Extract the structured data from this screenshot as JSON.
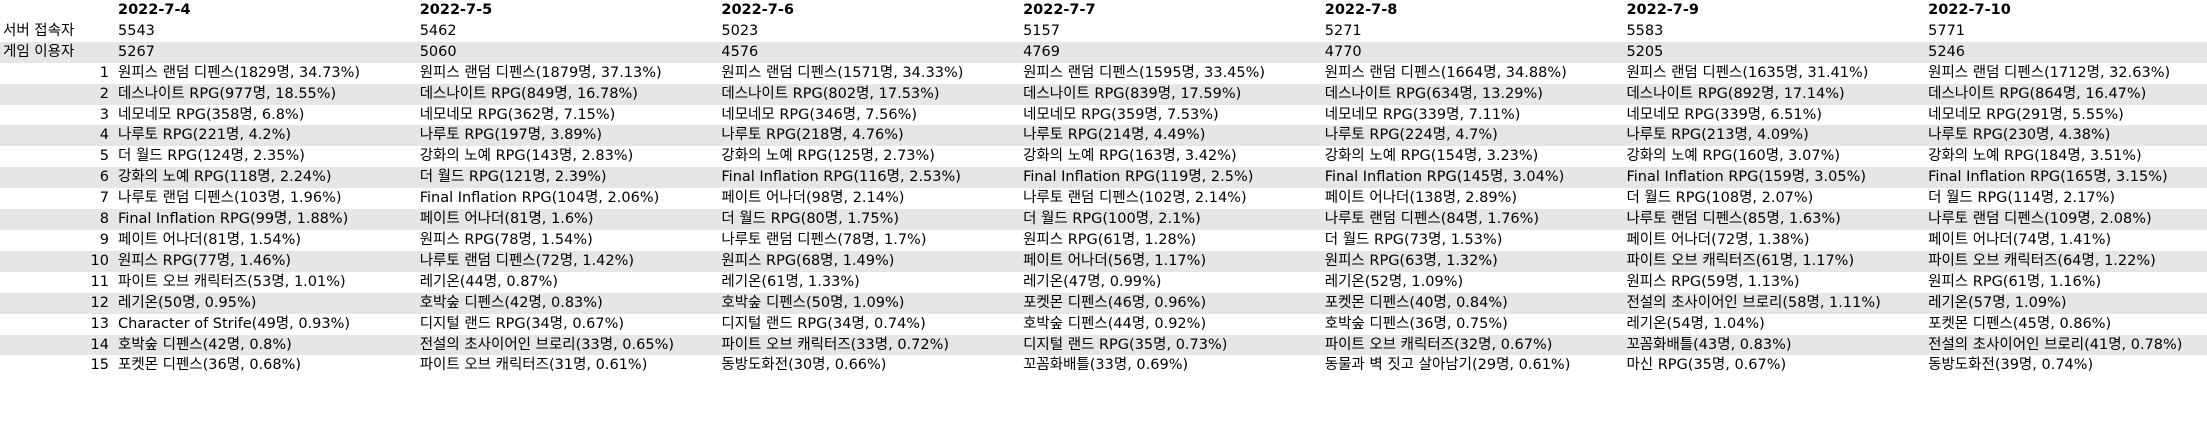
{
  "table": {
    "dates": [
      "2022-7-4",
      "2022-7-5",
      "2022-7-6",
      "2022-7-7",
      "2022-7-8",
      "2022-7-9",
      "2022-7-10"
    ],
    "server_label": "서버 접속자",
    "server_counts": [
      "5543",
      "5462",
      "5023",
      "5157",
      "5271",
      "5583",
      "5771"
    ],
    "player_label": "게임 이용자",
    "player_counts": [
      "5267",
      "5060",
      "4576",
      "4769",
      "4770",
      "5205",
      "5246"
    ],
    "ranks": [
      {
        "rank": "1",
        "cells": [
          "원피스 랜덤 디펜스(1829명, 34.73%)",
          "원피스 랜덤 디펜스(1879명, 37.13%)",
          "원피스 랜덤 디펜스(1571명, 34.33%)",
          "원피스 랜덤 디펜스(1595명, 33.45%)",
          "원피스 랜덤 디펜스(1664명, 34.88%)",
          "원피스 랜덤 디펜스(1635명, 31.41%)",
          "원피스 랜덤 디펜스(1712명, 32.63%)"
        ]
      },
      {
        "rank": "2",
        "cells": [
          "데스나이트 RPG(977명, 18.55%)",
          "데스나이트 RPG(849명, 16.78%)",
          "데스나이트 RPG(802명, 17.53%)",
          "데스나이트 RPG(839명, 17.59%)",
          "데스나이트 RPG(634명, 13.29%)",
          "데스나이트 RPG(892명, 17.14%)",
          "데스나이트 RPG(864명, 16.47%)"
        ]
      },
      {
        "rank": "3",
        "cells": [
          "네모네모 RPG(358명, 6.8%)",
          "네모네모 RPG(362명, 7.15%)",
          "네모네모 RPG(346명, 7.56%)",
          "네모네모 RPG(359명, 7.53%)",
          "네모네모 RPG(339명, 7.11%)",
          "네모네모 RPG(339명, 6.51%)",
          "네모네모 RPG(291명, 5.55%)"
        ]
      },
      {
        "rank": "4",
        "cells": [
          "나루토 RPG(221명, 4.2%)",
          "나루토 RPG(197명, 3.89%)",
          "나루토 RPG(218명, 4.76%)",
          "나루토 RPG(214명, 4.49%)",
          "나루토 RPG(224명, 4.7%)",
          "나루토 RPG(213명, 4.09%)",
          "나루토 RPG(230명, 4.38%)"
        ]
      },
      {
        "rank": "5",
        "cells": [
          "더 월드 RPG(124명, 2.35%)",
          "강화의 노예 RPG(143명, 2.83%)",
          "강화의 노예 RPG(125명, 2.73%)",
          "강화의 노예 RPG(163명, 3.42%)",
          "강화의 노예 RPG(154명, 3.23%)",
          "강화의 노예 RPG(160명, 3.07%)",
          "강화의 노예 RPG(184명, 3.51%)"
        ]
      },
      {
        "rank": "6",
        "cells": [
          "강화의 노예 RPG(118명, 2.24%)",
          "더 월드 RPG(121명, 2.39%)",
          "Final Inflation RPG(116명, 2.53%)",
          "Final Inflation RPG(119명, 2.5%)",
          "Final Inflation RPG(145명, 3.04%)",
          "Final Inflation RPG(159명, 3.05%)",
          "Final Inflation RPG(165명, 3.15%)"
        ]
      },
      {
        "rank": "7",
        "cells": [
          "나루토 랜덤 디펜스(103명, 1.96%)",
          "Final Inflation RPG(104명, 2.06%)",
          "페이트 어나더(98명, 2.14%)",
          "나루토 랜덤 디펜스(102명, 2.14%)",
          "페이트 어나더(138명, 2.89%)",
          "더 월드 RPG(108명, 2.07%)",
          "더 월드 RPG(114명, 2.17%)"
        ]
      },
      {
        "rank": "8",
        "cells": [
          "Final Inflation RPG(99명, 1.88%)",
          "페이트 어나더(81명, 1.6%)",
          "더 월드 RPG(80명, 1.75%)",
          "더 월드 RPG(100명, 2.1%)",
          "나루토 랜덤 디펜스(84명, 1.76%)",
          "나루토 랜덤 디펜스(85명, 1.63%)",
          "나루토 랜덤 디펜스(109명, 2.08%)"
        ]
      },
      {
        "rank": "9",
        "cells": [
          "페이트 어나더(81명, 1.54%)",
          "원피스 RPG(78명, 1.54%)",
          "나루토 랜덤 디펜스(78명, 1.7%)",
          "원피스 RPG(61명, 1.28%)",
          "더 월드 RPG(73명, 1.53%)",
          "페이트 어나더(72명, 1.38%)",
          "페이트 어나더(74명, 1.41%)"
        ]
      },
      {
        "rank": "10",
        "cells": [
          "원피스 RPG(77명, 1.46%)",
          "나루토 랜덤 디펜스(72명, 1.42%)",
          "원피스 RPG(68명, 1.49%)",
          "페이트 어나더(56명, 1.17%)",
          "원피스 RPG(63명, 1.32%)",
          "파이트 오브 캐릭터즈(61명, 1.17%)",
          "파이트 오브 캐릭터즈(64명, 1.22%)"
        ]
      },
      {
        "rank": "11",
        "cells": [
          "파이트 오브 캐릭터즈(53명, 1.01%)",
          "레기온(44명, 0.87%)",
          "레기온(61명, 1.33%)",
          "레기온(47명, 0.99%)",
          "레기온(52명, 1.09%)",
          "원피스 RPG(59명, 1.13%)",
          "원피스 RPG(61명, 1.16%)"
        ]
      },
      {
        "rank": "12",
        "cells": [
          "레기온(50명, 0.95%)",
          "호박숲 디펜스(42명, 0.83%)",
          "호박숲 디펜스(50명, 1.09%)",
          "포켓몬 디펜스(46명, 0.96%)",
          "포켓몬 디펜스(40명, 0.84%)",
          "전설의 초사이어인 브로리(58명, 1.11%)",
          "레기온(57명, 1.09%)"
        ]
      },
      {
        "rank": "13",
        "cells": [
          "Character of Strife(49명, 0.93%)",
          "디지털 랜드 RPG(34명, 0.67%)",
          "디지털 랜드 RPG(34명, 0.74%)",
          "호박숲 디펜스(44명, 0.92%)",
          "호박숲 디펜스(36명, 0.75%)",
          "레기온(54명, 1.04%)",
          "포켓몬 디펜스(45명, 0.86%)"
        ]
      },
      {
        "rank": "14",
        "cells": [
          "호박숲 디펜스(42명, 0.8%)",
          "전설의 초사이어인 브로리(33명, 0.65%)",
          "파이트 오브 캐릭터즈(33명, 0.72%)",
          "디지털 랜드 RPG(35명, 0.73%)",
          "파이트 오브 캐릭터즈(32명, 0.67%)",
          "꼬꼼화배틀(43명, 0.83%)",
          "전설의 초사이어인 브로리(41명, 0.78%)"
        ]
      },
      {
        "rank": "15",
        "cells": [
          "포켓몬 디펜스(36명, 0.68%)",
          "파이트 오브 캐릭터즈(31명, 0.61%)",
          "동방도화전(30명, 0.66%)",
          "꼬꼼화배틀(33명, 0.69%)",
          "동물과 벽 짓고 살아남기(29명, 0.61%)",
          "마신 RPG(35명, 0.67%)",
          "동방도화전(39명, 0.74%)"
        ]
      }
    ]
  }
}
